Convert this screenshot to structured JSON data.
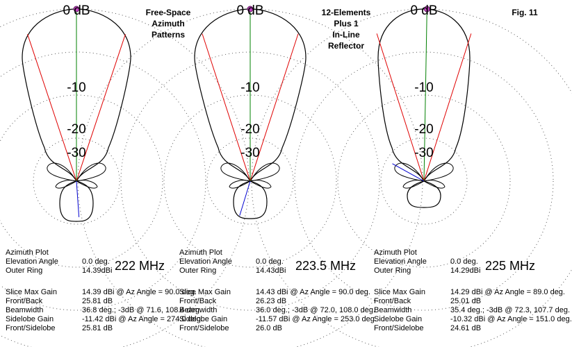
{
  "titles": {
    "left": [
      "Free-Space",
      "Azimuth",
      "Patterns"
    ],
    "middle": [
      "12-Elements",
      "Plus 1",
      "In-Line",
      "Reflector"
    ],
    "right": "Fig. 11"
  },
  "ring_labels": [
    "-10",
    "-20",
    "-30"
  ],
  "zero_db_label": "0 dB",
  "panels": [
    {
      "frequency": "222 MHz",
      "info_header": "Azimuth Plot",
      "elevation_label": "Elevation Angle",
      "elevation_value": "0.0 deg.",
      "outer_ring_label": "Outer Ring",
      "outer_ring_value": "14.39dBi",
      "slice_max_label": "Slice Max Gain",
      "slice_max_value": "14.39 dBi @ Az Angle = 90.0 deg.",
      "front_back_label": "Front/Back",
      "front_back_value": "25.81 dB",
      "beamwidth_label": "Beamwidth",
      "beamwidth_value": "36.8 deg.; -3dB @ 71.6, 108.4 deg.",
      "sidelobe_label": "Sidelobe Gain",
      "sidelobe_value": "-11.42 dBi @ Az Angle = 274.0 deg.",
      "front_side_label": "Front/Sidelobe",
      "front_side_value": "25.81 dB"
    },
    {
      "frequency": "223.5 MHz",
      "info_header": "Azimuth Plot",
      "elevation_label": "Elevation Angle",
      "elevation_value": "0.0 deg.",
      "outer_ring_label": "Outer Ring",
      "outer_ring_value": "14.43dBi",
      "slice_max_label": "Slice Max Gain",
      "slice_max_value": "14.43 dBi @ Az Angle = 90.0 deg.",
      "front_back_label": "Front/Back",
      "front_back_value": "26.23 dB",
      "beamwidth_label": "Beamwidth",
      "beamwidth_value": "36.0 deg.; -3dB @ 72.0, 108.0 deg.",
      "sidelobe_label": "Sidelobe Gain",
      "sidelobe_value": "-11.57 dBi @ Az Angle = 253.0 deg.",
      "front_side_label": "Front/Sidelobe",
      "front_side_value": "26.0 dB"
    },
    {
      "frequency": "225 MHz",
      "info_header": "Azimuth Plot",
      "elevation_label": "Elevation Angle",
      "elevation_value": "0.0 deg.",
      "outer_ring_label": "Outer Ring",
      "outer_ring_value": "14.29dBi",
      "slice_max_label": "Slice Max Gain",
      "slice_max_value": "14.29 dBi @ Az Angle = 89.0 deg.",
      "front_back_label": "Front/Back",
      "front_back_value": "25.01 dB",
      "beamwidth_label": "Beamwidth",
      "beamwidth_value": "35.4 deg.; -3dB @ 72.3, 107.7 deg.",
      "sidelobe_label": "Sidelobe Gain",
      "sidelobe_value": "-10.32 dBi @ Az Angle = 151.0 deg.",
      "front_side_label": "Front/Sidelobe",
      "front_side_value": "24.61 dB"
    }
  ],
  "chart_data": {
    "type": "polar",
    "rings_db": [
      0,
      -10,
      -20,
      -30
    ],
    "colors": {
      "pattern": "#000000",
      "beamwidth": "#e00000",
      "max_gain": "#008000",
      "sidelobe": "#0000d0",
      "marker": "#c040c0"
    },
    "series": [
      {
        "frequency_mhz": 222,
        "max_gain_az": 90.0,
        "beamwidth_edges": [
          71.6,
          108.4
        ],
        "sidelobe_az": 274.0
      },
      {
        "frequency_mhz": 223.5,
        "max_gain_az": 90.0,
        "beamwidth_edges": [
          72.0,
          108.0
        ],
        "sidelobe_az": 253.0
      },
      {
        "frequency_mhz": 225,
        "max_gain_az": 89.0,
        "beamwidth_edges": [
          72.3,
          107.7
        ],
        "sidelobe_az": 151.0
      }
    ]
  }
}
